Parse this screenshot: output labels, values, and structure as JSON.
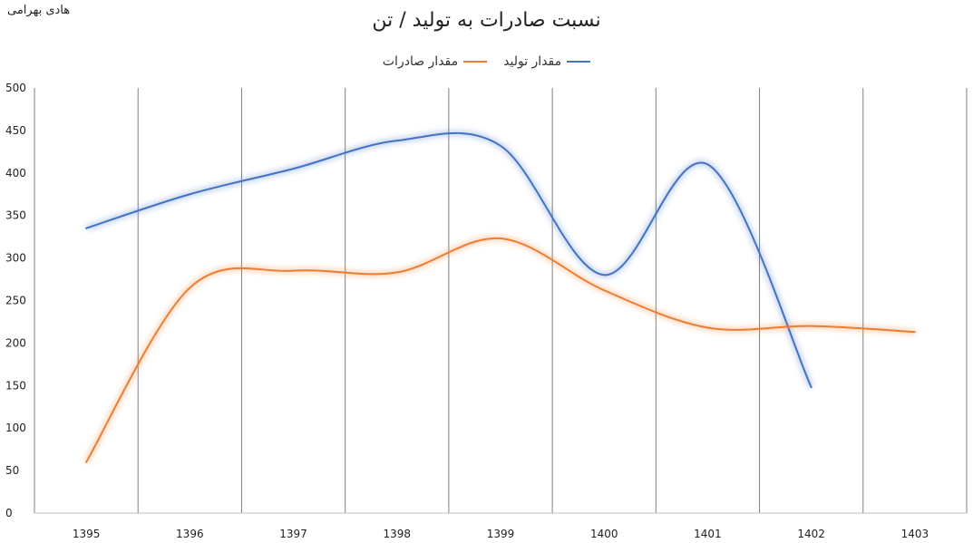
{
  "header": {
    "author": "هادی بهرامی",
    "title": "نسبت صادرات به تولید / تن"
  },
  "colors": {
    "production": "#4472C4",
    "exports": "#ED7D31",
    "grid": "#808080"
  },
  "chart_data": {
    "type": "line",
    "title": "نسبت صادرات به تولید / تن",
    "xlabel": "",
    "ylabel": "",
    "categories": [
      "1395",
      "1396",
      "1397",
      "1398",
      "1399",
      "1400",
      "1401",
      "1402",
      "1403"
    ],
    "ylim": [
      0,
      500
    ],
    "yticks": [
      0,
      50,
      100,
      150,
      200,
      250,
      300,
      350,
      400,
      450,
      500
    ],
    "grid": "vertical",
    "legend": "top-center",
    "series": [
      {
        "name": "مقدار تولید",
        "color": "#4472C4",
        "values": [
          335,
          375,
          405,
          438,
          432,
          280,
          410,
          148,
          null
        ]
      },
      {
        "name": "مقدار صادرات",
        "color": "#ED7D31",
        "values": [
          60,
          265,
          285,
          283,
          323,
          262,
          218,
          220,
          213
        ]
      }
    ]
  }
}
